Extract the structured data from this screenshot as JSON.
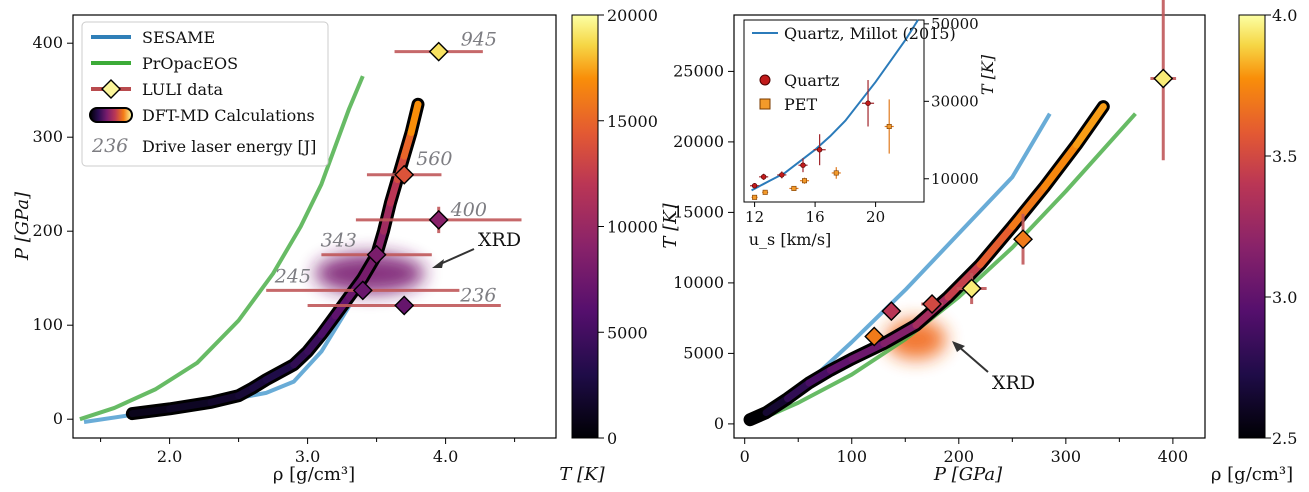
{
  "chart_data": [
    {
      "type": "line",
      "xlabel": "ρ [g/cm³]",
      "ylabel": "P [GPa]",
      "xlim": [
        1.3,
        4.8
      ],
      "ylim": [
        -20,
        430
      ],
      "xticks": [
        "2.0",
        "3.0",
        "4.0"
      ],
      "yticks": [
        "0",
        "100",
        "200",
        "300",
        "400"
      ],
      "legend_position": "top-left",
      "legend": [
        {
          "label": "SESAME"
        },
        {
          "label": "PrOpacEOS"
        },
        {
          "label": "LULI data"
        },
        {
          "label": "DFT-MD Calculations"
        },
        {
          "label": "236",
          "description": "Drive laser energy [J]"
        }
      ],
      "series": [
        {
          "name": "SESAME",
          "color": "#4f9ed0",
          "x": [
            1.38,
            1.7,
            2.2,
            2.7,
            2.9,
            3.1,
            3.3,
            3.5,
            3.6,
            3.7
          ],
          "y": [
            -3,
            4,
            14,
            28,
            40,
            72,
            120,
            185,
            225,
            275
          ]
        },
        {
          "name": "PrOpacEOS",
          "color": "#4caf4a",
          "x": [
            1.35,
            1.6,
            1.9,
            2.2,
            2.5,
            2.75,
            2.95,
            3.1,
            3.2,
            3.3,
            3.4
          ],
          "y": [
            0,
            12,
            32,
            60,
            105,
            155,
            205,
            250,
            290,
            330,
            365
          ]
        },
        {
          "name": "DFT-MD Calculations",
          "colorbar": "T",
          "x": [
            1.73,
            2.0,
            2.3,
            2.5,
            2.6,
            2.7,
            2.9,
            3.0,
            3.1,
            3.2,
            3.3,
            3.4,
            3.5,
            3.55,
            3.6,
            3.65,
            3.7,
            3.75,
            3.8
          ],
          "y": [
            6,
            11,
            18,
            25,
            33,
            42,
            58,
            72,
            90,
            110,
            130,
            150,
            175,
            200,
            230,
            255,
            280,
            305,
            335
          ],
          "T": [
            1000,
            1400,
            1800,
            2200,
            2600,
            3000,
            4000,
            4500,
            5500,
            6500,
            7200,
            8000,
            9000,
            10500,
            12000,
            13500,
            15000,
            17000,
            19000
          ]
        }
      ],
      "points": [
        {
          "label": "945",
          "x": 3.95,
          "y": 391,
          "xerr": 0.32,
          "yerr": 6,
          "T": 19000
        },
        {
          "label": "560",
          "x": 3.7,
          "y": 260,
          "xerr": 0.27,
          "yerr": 8,
          "T": 14000
        },
        {
          "label": "400",
          "x": 3.95,
          "y": 212,
          "xerr": 0.6,
          "yerr": 14,
          "T": 9000
        },
        {
          "label": "343",
          "x": 3.5,
          "y": 175,
          "xerr": 0.4,
          "yerr": 6,
          "T": 8200
        },
        {
          "label": "245",
          "x": 3.4,
          "y": 137,
          "xerr": 0.7,
          "yerr": 6,
          "T": 7200
        },
        {
          "label": "236",
          "x": 3.7,
          "y": 121,
          "xerr": 0.7,
          "yerr": 5,
          "T": 7000
        }
      ],
      "annotations": [
        {
          "text": "XRD"
        }
      ],
      "colorbar": {
        "label": "T [K]",
        "min": 0,
        "max": 20000,
        "ticks": [
          "0",
          "5000",
          "10000",
          "15000",
          "20000"
        ]
      }
    },
    {
      "type": "line",
      "xlabel": "P [GPa]",
      "ylabel": "T [K]",
      "xlim": [
        -10,
        430
      ],
      "ylim": [
        -1000,
        29000
      ],
      "xticks": [
        "0",
        "100",
        "200",
        "300",
        "400"
      ],
      "yticks": [
        "0",
        "5000",
        "10000",
        "15000",
        "20000",
        "25000"
      ],
      "series": [
        {
          "name": "SESAME",
          "color": "#4f9ed0",
          "x": [
            5,
            30,
            60,
            100,
            150,
            200,
            250,
            285
          ],
          "y": [
            300,
            1300,
            3000,
            5800,
            9500,
            13500,
            17500,
            22000
          ]
        },
        {
          "name": "PrOpacEOS",
          "color": "#4caf4a",
          "x": [
            5,
            50,
            100,
            150,
            200,
            250,
            300,
            365
          ],
          "y": [
            0,
            1500,
            3500,
            6000,
            9000,
            12500,
            16500,
            22000
          ]
        },
        {
          "name": "DFT-MD Calculations",
          "colorbar": "rho",
          "x": [
            5,
            20,
            40,
            60,
            80,
            100,
            130,
            160,
            190,
            220,
            250,
            280,
            310,
            335
          ],
          "y": [
            300,
            800,
            1800,
            2900,
            3800,
            4600,
            5700,
            7000,
            9000,
            11300,
            14000,
            16800,
            19800,
            22500
          ],
          "rho": [
            2.5,
            2.65,
            2.8,
            2.9,
            3.0,
            3.05,
            3.15,
            3.3,
            3.45,
            3.6,
            3.7,
            3.75,
            3.8,
            3.85
          ]
        }
      ],
      "points": [
        {
          "x": 391,
          "y": 24500,
          "xerr": 12,
          "yerr": 5800,
          "rho": 3.95
        },
        {
          "x": 260,
          "y": 13100,
          "xerr": 6,
          "yerr": 1800,
          "rho": 3.7
        },
        {
          "x": 212,
          "y": 9600,
          "xerr": 14,
          "yerr": 1100,
          "rho": 3.95
        },
        {
          "x": 175,
          "y": 8500,
          "xerr": 10,
          "yerr": 600,
          "rho": 3.5
        },
        {
          "x": 137,
          "y": 8000,
          "xerr": 8,
          "yerr": 600,
          "rho": 3.4
        },
        {
          "x": 121,
          "y": 6200,
          "xerr": 6,
          "yerr": 400,
          "rho": 3.7
        }
      ],
      "annotations": [
        {
          "text": "XRD"
        }
      ],
      "colorbar": {
        "label": "ρ [g/cm³]",
        "min": 2.5,
        "max": 4.0,
        "ticks": [
          "2.5",
          "3.0",
          "3.5",
          "4.0"
        ]
      },
      "inset": {
        "xlabel": "u_s [km/s]",
        "ylabel": "T [K]",
        "xlim": [
          11.3,
          23.2
        ],
        "ylim": [
          4000,
          51000
        ],
        "xticks": [
          "12",
          "16",
          "20"
        ],
        "yticks": [
          "10000",
          "30000",
          "50000"
        ],
        "legend": [
          {
            "label": "Quartz, Millot (2015)"
          },
          {
            "label": "Quartz"
          },
          {
            "label": "PET"
          }
        ],
        "series": [
          {
            "name": "Quartz, Millot (2015)",
            "color": "#2b7bba",
            "x": [
              11.8,
              13,
              14,
              15,
              16,
              17,
              18,
              19,
              20,
              21,
              22,
              22.8
            ],
            "y": [
              7000,
              9500,
              11500,
              14500,
              17500,
              21000,
              25000,
              30000,
              35000,
              40500,
              46000,
              51000
            ]
          }
        ],
        "points": [
          {
            "name": "Quartz",
            "x": 12.0,
            "y": 8200,
            "xerr": 0.3,
            "yerr": 700
          },
          {
            "name": "Quartz",
            "x": 12.6,
            "y": 10500,
            "xerr": 0.3,
            "yerr": 800
          },
          {
            "name": "Quartz",
            "x": 13.8,
            "y": 11000,
            "xerr": 0.3,
            "yerr": 900
          },
          {
            "name": "Quartz",
            "x": 15.2,
            "y": 13500,
            "xerr": 0.3,
            "yerr": 1800
          },
          {
            "name": "Quartz",
            "x": 16.3,
            "y": 17500,
            "xerr": 0.4,
            "yerr": 4000
          },
          {
            "name": "Quartz",
            "x": 19.5,
            "y": 29500,
            "xerr": 0.4,
            "yerr": 6000
          },
          {
            "name": "PET",
            "x": 12.0,
            "y": 5200,
            "xerr": 0.2,
            "yerr": 500
          },
          {
            "name": "PET",
            "x": 12.7,
            "y": 6500,
            "xerr": 0.2,
            "yerr": 500
          },
          {
            "name": "PET",
            "x": 14.6,
            "y": 7500,
            "xerr": 0.3,
            "yerr": 600
          },
          {
            "name": "PET",
            "x": 15.3,
            "y": 9500,
            "xerr": 0.3,
            "yerr": 800
          },
          {
            "name": "PET",
            "x": 17.4,
            "y": 11500,
            "xerr": 0.3,
            "yerr": 1500
          },
          {
            "name": "PET",
            "x": 20.9,
            "y": 23500,
            "xerr": 0.3,
            "yerr": 7000
          }
        ]
      }
    }
  ]
}
